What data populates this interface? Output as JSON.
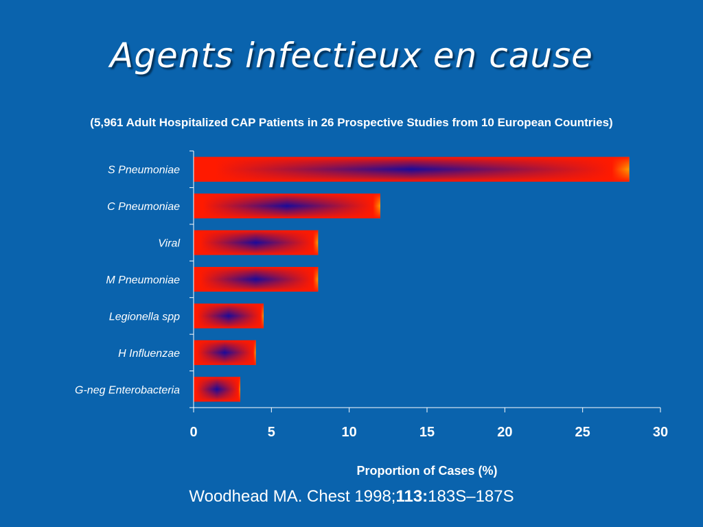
{
  "slide": {
    "title": "Agents infectieux en cause",
    "subtitle": "(5,961 Adult Hospitalized CAP Patients in 26 Prospective Studies from 10 European Countries)",
    "citation_prefix": "Woodhead MA. Chest 1998;",
    "citation_volume": "113:",
    "citation_pages": "183S–187S"
  },
  "colors": {
    "background": "#0a63ad",
    "bar_edge": "#ff1a00",
    "bar_center": "#1a0a9a",
    "bar_tip": "#ffa000",
    "axis": "#ffffff"
  },
  "chart_data": {
    "type": "bar",
    "orientation": "horizontal",
    "categories": [
      "S Pneumoniae",
      "C Pneumoniae",
      "Viral",
      "M Pneumoniae",
      "Legionella spp",
      "H Influenzae",
      "G-neg Enterobacteria"
    ],
    "values": [
      28,
      12,
      8,
      8,
      4.5,
      4,
      3
    ],
    "xlabel": "Proportion of Cases (%)",
    "xlim": [
      0,
      30
    ],
    "xticks": [
      0,
      5,
      10,
      15,
      20,
      25,
      30
    ],
    "grid": false
  }
}
